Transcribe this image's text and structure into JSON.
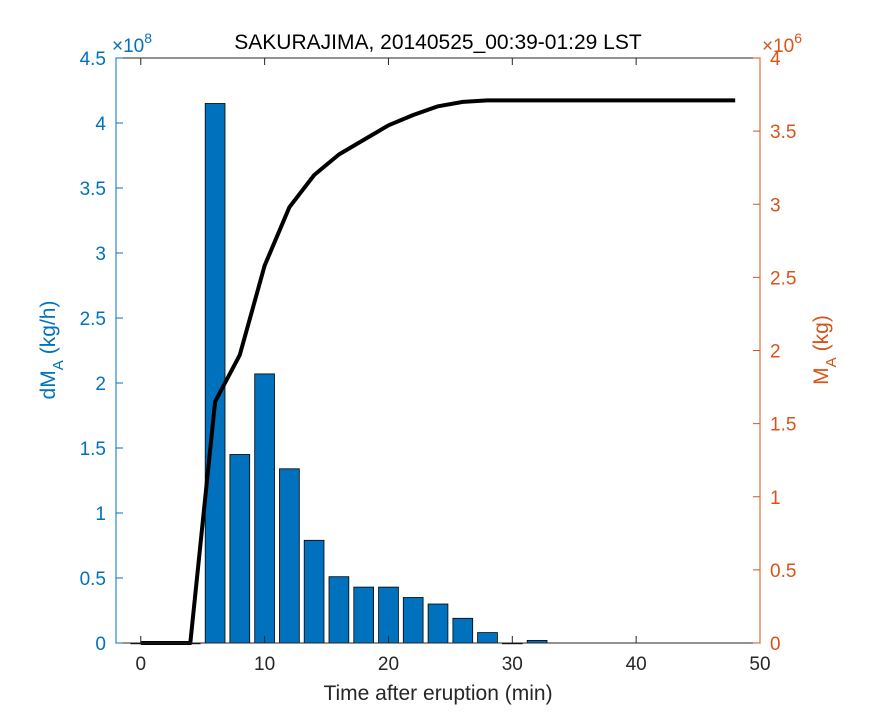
{
  "chart_data": {
    "type": "bar",
    "title": "SAKURAJIMA, 20140525_00:39-01:29 LST",
    "xlabel": "Time after eruption (min)",
    "xlim": [
      -2,
      50
    ],
    "xticks": [
      0,
      10,
      20,
      30,
      40,
      50
    ],
    "left_axis": {
      "label_main": "dM",
      "label_sub": "A",
      "label_unit": "(kg/h)",
      "ylim": [
        0,
        4.5
      ],
      "ticks": [
        0,
        0.5,
        1,
        1.5,
        2,
        2.5,
        3,
        3.5,
        4,
        4.5
      ],
      "tick_labels": [
        "0",
        "0.5",
        "1",
        "1.5",
        "2",
        "2.5",
        "3",
        "3.5",
        "4",
        "4.5"
      ],
      "exponent_base": "×10",
      "exponent_power": "8",
      "color": "#0072BD"
    },
    "right_axis": {
      "label_main": "M",
      "label_sub": "A",
      "label_unit": "(kg)",
      "ylim": [
        0,
        4
      ],
      "ticks": [
        0,
        0.5,
        1,
        1.5,
        2,
        2.5,
        3,
        3.5,
        4
      ],
      "tick_labels": [
        "0",
        "0.5",
        "1",
        "1.5",
        "2",
        "2.5",
        "3",
        "3.5",
        "4"
      ],
      "exponent_base": "×10",
      "exponent_power": "6",
      "color": "#D95319"
    },
    "bars": {
      "axis": "left",
      "color": "#0072BD",
      "x": [
        0,
        2,
        4,
        6,
        8,
        10,
        12,
        14,
        16,
        18,
        20,
        22,
        24,
        26,
        28,
        30,
        32
      ],
      "values": [
        0,
        0,
        0,
        4.15,
        1.45,
        2.07,
        1.34,
        0.79,
        0.51,
        0.43,
        0.43,
        0.35,
        0.3,
        0.19,
        0.08,
        0,
        0.02
      ]
    },
    "line": {
      "axis": "right",
      "color": "#000000",
      "x": [
        0,
        2,
        4,
        6,
        8,
        10,
        12,
        14,
        16,
        18,
        20,
        22,
        24,
        26,
        28,
        30,
        32,
        34,
        36,
        38,
        40,
        42,
        44,
        46,
        48
      ],
      "values": [
        0,
        0,
        0,
        1.65,
        1.97,
        2.58,
        2.98,
        3.2,
        3.34,
        3.44,
        3.54,
        3.61,
        3.67,
        3.7,
        3.71,
        3.71,
        3.71,
        3.71,
        3.71,
        3.71,
        3.71,
        3.71,
        3.71,
        3.71,
        3.71
      ]
    },
    "grid": false,
    "legend": "none"
  }
}
